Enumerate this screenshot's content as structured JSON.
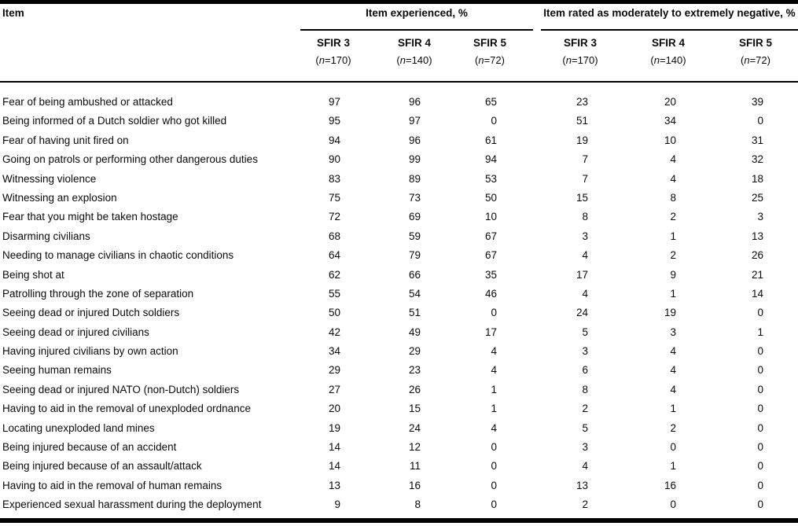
{
  "table": {
    "item_header": "Item",
    "n_open": "(",
    "n_char": "n",
    "n_eq": "=",
    "n_close": ")",
    "groups": [
      {
        "title": "Item experienced, %",
        "cols": [
          {
            "sfir": "SFIR 3",
            "n": "170"
          },
          {
            "sfir": "SFIR 4",
            "n": "140"
          },
          {
            "sfir": "SFIR 5",
            "n": "72"
          }
        ]
      },
      {
        "title": "Item rated as moderately to extremely negative, %",
        "cols": [
          {
            "sfir": "SFIR 3",
            "n": "170"
          },
          {
            "sfir": "SFIR 4",
            "n": "140"
          },
          {
            "sfir": "SFIR 5",
            "n": "72"
          }
        ]
      }
    ],
    "rows": [
      {
        "label": "Fear of being ambushed or attacked",
        "values": [
          97,
          96,
          65,
          23,
          20,
          39
        ]
      },
      {
        "label": "Being informed of a Dutch soldier who got killed",
        "values": [
          95,
          97,
          0,
          51,
          34,
          0
        ]
      },
      {
        "label": "Fear of having unit fired on",
        "values": [
          94,
          96,
          61,
          19,
          10,
          31
        ]
      },
      {
        "label": "Going on patrols or performing other dangerous duties",
        "values": [
          90,
          99,
          94,
          7,
          4,
          32
        ]
      },
      {
        "label": "Witnessing violence",
        "values": [
          83,
          89,
          53,
          7,
          4,
          18
        ]
      },
      {
        "label": "Witnessing an explosion",
        "values": [
          75,
          73,
          50,
          15,
          8,
          25
        ]
      },
      {
        "label": "Fear that you might be taken hostage",
        "values": [
          72,
          69,
          10,
          8,
          2,
          3
        ]
      },
      {
        "label": "Disarming civilians",
        "values": [
          68,
          59,
          67,
          3,
          1,
          13
        ]
      },
      {
        "label": "Needing to manage civilians in chaotic conditions",
        "values": [
          64,
          79,
          67,
          4,
          2,
          26
        ]
      },
      {
        "label": "Being shot at",
        "values": [
          62,
          66,
          35,
          17,
          9,
          21
        ]
      },
      {
        "label": "Patrolling through the zone of separation",
        "values": [
          55,
          54,
          46,
          4,
          1,
          14
        ]
      },
      {
        "label": "Seeing dead or injured Dutch soldiers",
        "values": [
          50,
          51,
          0,
          24,
          19,
          0
        ]
      },
      {
        "label": "Seeing dead or injured civilians",
        "values": [
          42,
          49,
          17,
          5,
          3,
          1
        ]
      },
      {
        "label": "Having injured civilians by own action",
        "values": [
          34,
          29,
          4,
          3,
          4,
          0
        ]
      },
      {
        "label": "Seeing human remains",
        "values": [
          29,
          23,
          4,
          6,
          4,
          0
        ]
      },
      {
        "label": "Seeing dead or injured NATO (non-Dutch) soldiers",
        "values": [
          27,
          26,
          1,
          8,
          4,
          0
        ]
      },
      {
        "label": "Having to aid in the removal of unexploded ordnance",
        "values": [
          20,
          15,
          1,
          2,
          1,
          0
        ]
      },
      {
        "label": "Locating unexploded land mines",
        "values": [
          19,
          24,
          4,
          5,
          2,
          0
        ]
      },
      {
        "label": "Being injured because of an accident",
        "values": [
          14,
          12,
          0,
          3,
          0,
          0
        ]
      },
      {
        "label": "Being injured because of an assault/attack",
        "values": [
          14,
          11,
          0,
          4,
          1,
          0
        ]
      },
      {
        "label": "Having to aid in the removal of human remains",
        "values": [
          13,
          16,
          0,
          13,
          16,
          0
        ]
      },
      {
        "label": "Experienced sexual harassment during the deployment",
        "values": [
          9,
          8,
          0,
          2,
          0,
          0
        ]
      }
    ]
  }
}
